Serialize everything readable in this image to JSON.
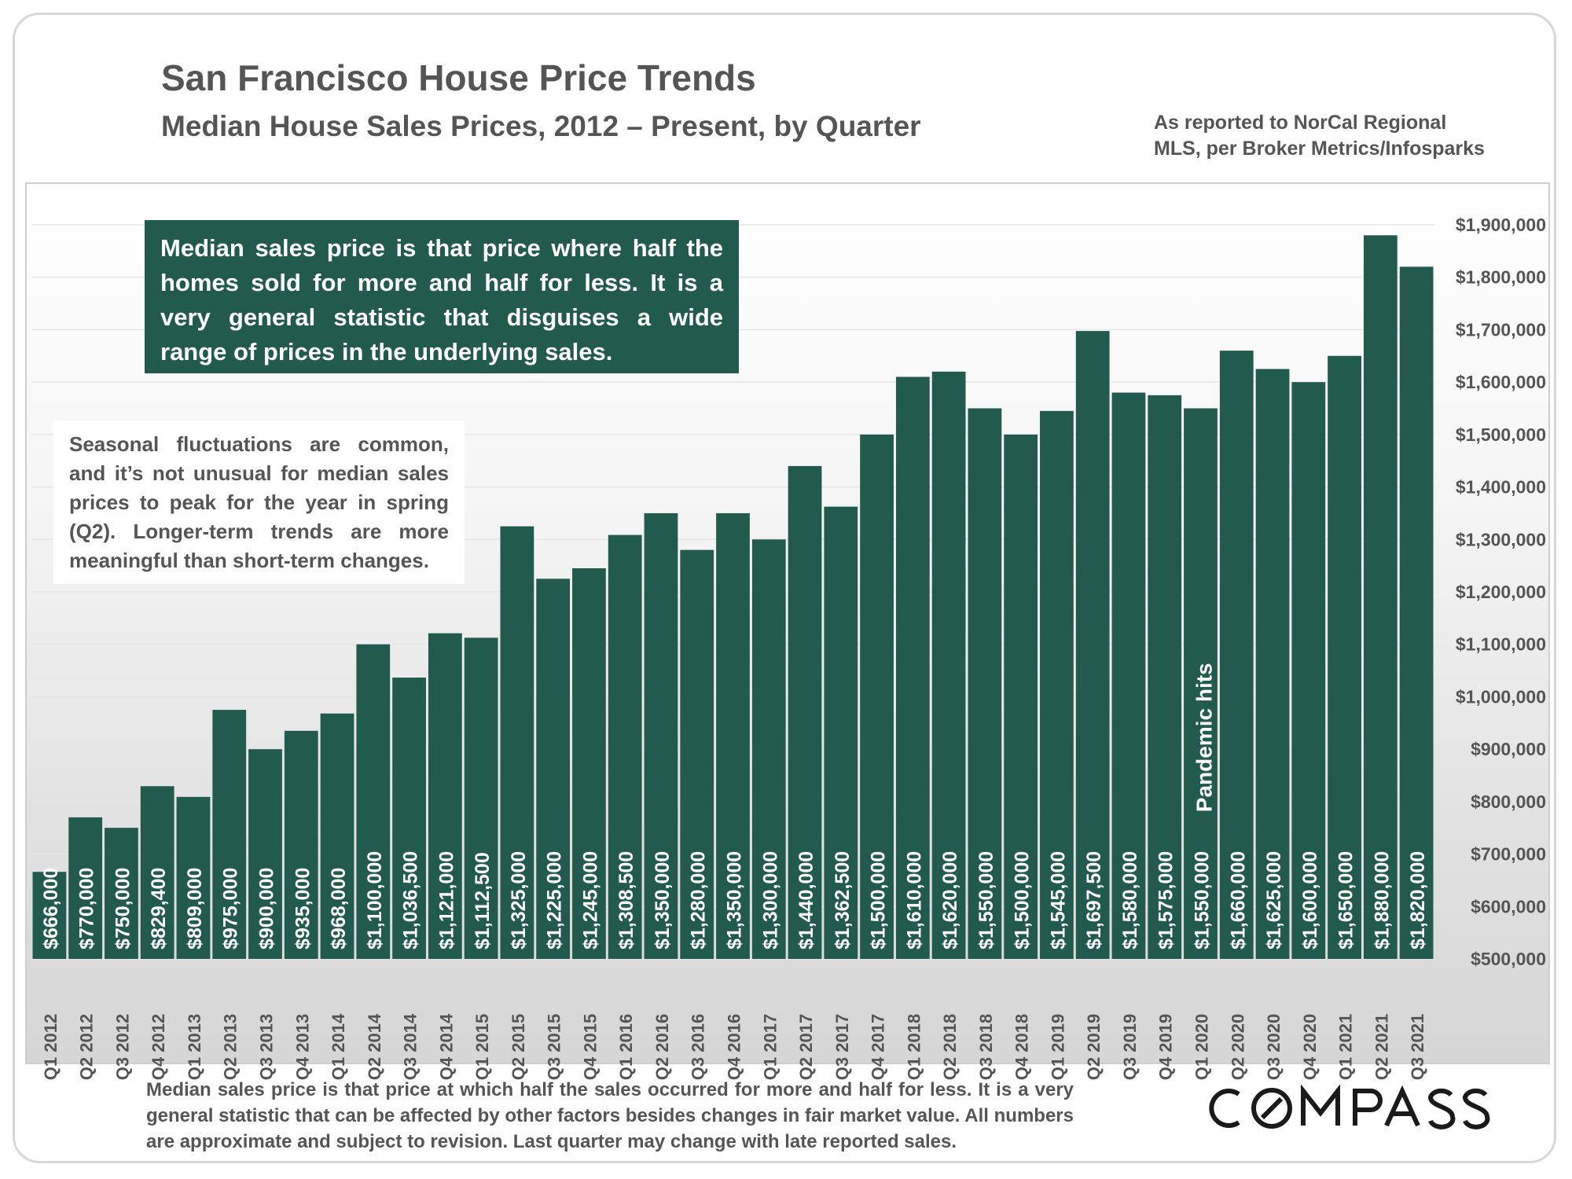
{
  "header": {
    "title": "San Francisco House Price Trends",
    "subtitle": "Median House Sales Prices, 2012 – Present, by Quarter",
    "source_line1": "As reported to NorCal Regional",
    "source_line2": "MLS, per Broker Metrics/Infosparks"
  },
  "callouts": {
    "green": "Median sales price is that price where half the homes sold for more and half for less. It is a very general statistic that disguises a wide range of prices in the underlying sales.",
    "white": "Seasonal fluctuations are common, and it’s not unusual for median sales prices to peak for the year in spring (Q2). Longer-term trends are more meaningful than short-term changes."
  },
  "footnote": "Median sales price is that price at which half the sales occurred for more and half for less. It is a very general statistic that can be affected by other factors besides changes in fair market value. All numbers are approximate and subject to revision. Last quarter may change with late reported sales.",
  "logo": {
    "text": "COMPASS"
  },
  "colors": {
    "bar": "#225a4e",
    "text": "#555555",
    "bar_label": "#ffffff"
  },
  "chart_data": {
    "type": "bar",
    "title": "San Francisco House Price Trends",
    "subtitle": "Median House Sales Prices, 2012 – Present, by Quarter",
    "categories": [
      "Q1 2012",
      "Q2 2012",
      "Q3 2012",
      "Q4 2012",
      "Q1 2013",
      "Q2 2013",
      "Q3 2013",
      "Q4 2013",
      "Q1 2014",
      "Q2 2014",
      "Q3 2014",
      "Q4 2014",
      "Q1 2015",
      "Q2 2015",
      "Q3 2015",
      "Q4 2015",
      "Q1 2016",
      "Q2 2016",
      "Q3 2016",
      "Q4 2016",
      "Q1 2017",
      "Q2 2017",
      "Q3 2017",
      "Q4 2017",
      "Q1 2018",
      "Q2 2018",
      "Q3 2018",
      "Q4 2018",
      "Q1 2019",
      "Q2 2019",
      "Q3 2019",
      "Q4 2019",
      "Q1 2020",
      "Q2 2020",
      "Q3 2020",
      "Q4 2020",
      "Q1 2021",
      "Q2 2021",
      "Q3 2021"
    ],
    "values": [
      666000,
      770000,
      750000,
      829400,
      809000,
      975000,
      900000,
      935000,
      968000,
      1100000,
      1036500,
      1121000,
      1112500,
      1325000,
      1225000,
      1245000,
      1308500,
      1350000,
      1280000,
      1350000,
      1300000,
      1440000,
      1362500,
      1500000,
      1610000,
      1620000,
      1550000,
      1500000,
      1545000,
      1697500,
      1580000,
      1575000,
      1550000,
      1660000,
      1625000,
      1600000,
      1650000,
      1880000,
      1820000
    ],
    "data_labels": [
      "$666,000",
      "$770,000",
      "$750,000",
      "$829,400",
      "$809,000",
      "$975,000",
      "$900,000",
      "$935,000",
      "$968,000",
      "$1,100,000",
      "$1,036,500",
      "$1,121,000",
      "$1,112,500",
      "$1,325,000",
      "$1,225,000",
      "$1,245,000",
      "$1,308,500",
      "$1,350,000",
      "$1,280,000",
      "$1,350,000",
      "$1,300,000",
      "$1,440,000",
      "$1,362,500",
      "$1,500,000",
      "$1,610,000",
      "$1,620,000",
      "$1,550,000",
      "$1,500,000",
      "$1,545,000",
      "$1,697,500",
      "$1,580,000",
      "$1,575,000",
      "$1,550,000",
      "$1,660,000",
      "$1,625,000",
      "$1,600,000",
      "$1,650,000",
      "$1,880,000",
      "$1,820,000"
    ],
    "ylim": [
      500000,
      1900000
    ],
    "yticks": [
      500000,
      600000,
      700000,
      800000,
      900000,
      1000000,
      1100000,
      1200000,
      1300000,
      1400000,
      1500000,
      1600000,
      1700000,
      1800000,
      1900000
    ],
    "ytick_labels": [
      "$500,000",
      "$600,000",
      "$700,000",
      "$800,000",
      "$900,000",
      "$1,000,000",
      "$1,100,000",
      "$1,200,000",
      "$1,300,000",
      "$1,400,000",
      "$1,500,000",
      "$1,600,000",
      "$1,700,000",
      "$1,800,000",
      "$1,900,000"
    ],
    "y_axis_side": "right",
    "grid": true,
    "annotation": {
      "text": "Pandemic hits",
      "category": "Q1 2020"
    },
    "xlabel": "",
    "ylabel": ""
  }
}
